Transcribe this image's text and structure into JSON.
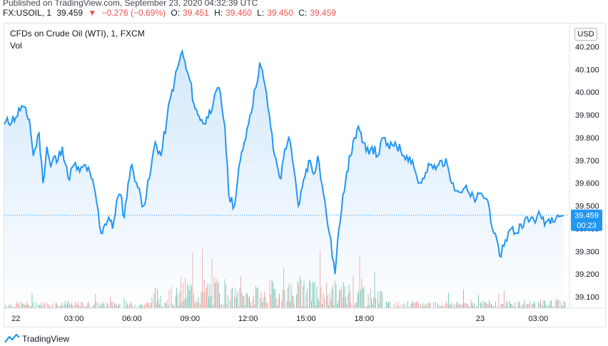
{
  "header": {
    "published": "Published on TradingView.com, September 23, 2020 04:32:39 UTC",
    "symbol": "FX:USOIL, 1",
    "last": "39.459",
    "change": "−0.276 (−0.69%)",
    "o_label": "O:",
    "o": "39.451",
    "h_label": "H:",
    "h": "39.460",
    "l_label": "L:",
    "l": "39.450",
    "c_label": "C:",
    "c": "39.459"
  },
  "panel": {
    "title": "CFDs on Crude Oil (WTI), 1, FXCM",
    "vol_label": "Vol",
    "currency": "USD",
    "price_tag": "39.459",
    "countdown": "00:23"
  },
  "footer": {
    "brand": "TradingView"
  },
  "colors": {
    "line": "#2196f3",
    "fill_top": "#cfe6fb",
    "up_vol": "#7ac8b4",
    "down_vol": "#f0a8a3",
    "tag": "#2196f3"
  },
  "chart_data": {
    "type": "area",
    "ylim": [
      39.05,
      40.28
    ],
    "yticks": [
      "40.200",
      "40.100",
      "40.000",
      "39.900",
      "39.800",
      "39.700",
      "39.600",
      "39.500",
      "39.400",
      "39.300",
      "39.200",
      "39.100"
    ],
    "yticks_values": [
      40.2,
      40.1,
      40.0,
      39.9,
      39.8,
      39.7,
      39.6,
      39.5,
      39.4,
      39.3,
      39.2,
      39.1
    ],
    "xticks": [
      "22",
      "03:00",
      "06:00",
      "09:00",
      "12:00",
      "15:00",
      "18:00",
      "23",
      "03:00"
    ],
    "xticks_hours": [
      0,
      3,
      6,
      9,
      12,
      15,
      18,
      24,
      27
    ],
    "x_range_hours": [
      -0.6,
      28.5
    ],
    "last_value": 39.459,
    "series": [
      {
        "hours": [
          -0.6,
          0,
          0.3,
          0.7,
          0.9,
          1.2,
          1.4,
          1.6,
          1.8,
          2.0,
          2.1,
          2.4,
          2.7,
          3.0,
          3.3,
          3.6,
          3.9,
          4.1,
          4.4,
          4.6,
          4.8,
          5.0,
          5.2,
          5.4,
          5.6,
          5.8,
          6.0,
          6.3,
          6.6,
          6.9,
          7.2,
          7.5,
          7.8,
          8.0,
          8.2,
          8.4,
          8.6,
          8.8,
          9.0,
          9.2,
          9.4,
          9.6,
          9.8,
          10.0,
          10.2,
          10.5,
          10.8,
          11.0,
          11.3,
          11.6,
          11.8,
          12.1,
          12.4,
          12.6,
          12.8,
          13.1,
          13.3,
          13.5,
          13.7,
          13.9,
          14.1,
          14.3,
          14.6,
          14.8,
          15.0,
          15.2,
          15.4,
          15.6,
          15.9,
          16.2,
          16.5,
          16.7,
          16.9,
          17.1,
          17.3,
          17.5,
          17.7,
          17.9,
          18.1,
          18.4,
          18.7,
          19.0,
          19.3,
          19.6,
          19.9,
          20.2,
          20.5,
          20.8,
          21.1,
          21.4,
          21.7,
          22.0,
          22.3,
          22.6,
          22.9,
          23.2,
          23.5,
          23.8,
          24.1,
          24.4,
          24.7,
          25.0,
          25.3,
          25.6,
          25.9,
          26.1,
          26.3,
          26.5,
          26.7,
          26.9,
          27.1,
          27.4,
          27.7,
          28.0,
          28.3
        ],
        "values": [
          39.86,
          39.89,
          39.94,
          39.88,
          39.72,
          39.82,
          39.6,
          39.76,
          39.67,
          39.72,
          39.69,
          39.76,
          39.62,
          39.68,
          39.65,
          39.68,
          39.62,
          39.56,
          39.38,
          39.42,
          39.45,
          39.4,
          39.52,
          39.55,
          39.45,
          39.6,
          39.68,
          39.58,
          39.5,
          39.62,
          39.78,
          39.72,
          39.88,
          39.98,
          40.05,
          40.12,
          40.18,
          40.1,
          40.05,
          39.95,
          39.9,
          39.88,
          39.86,
          39.92,
          39.95,
          40.02,
          39.85,
          39.55,
          39.5,
          39.7,
          39.78,
          39.9,
          40.02,
          40.13,
          40.06,
          39.9,
          39.75,
          39.68,
          39.62,
          39.75,
          39.8,
          39.7,
          39.5,
          39.58,
          39.66,
          39.7,
          39.64,
          39.72,
          39.55,
          39.38,
          39.2,
          39.4,
          39.55,
          39.65,
          39.72,
          39.8,
          39.85,
          39.78,
          39.74,
          39.76,
          39.72,
          39.8,
          39.75,
          39.78,
          39.74,
          39.72,
          39.7,
          39.6,
          39.62,
          39.68,
          39.66,
          39.7,
          39.68,
          39.6,
          39.56,
          39.58,
          39.54,
          39.53,
          39.55,
          39.52,
          39.38,
          39.28,
          39.35,
          39.4,
          39.38,
          39.42,
          39.44,
          39.43,
          39.45,
          39.44,
          39.46,
          39.43,
          39.45,
          39.459,
          39.459
        ]
      }
    ]
  }
}
